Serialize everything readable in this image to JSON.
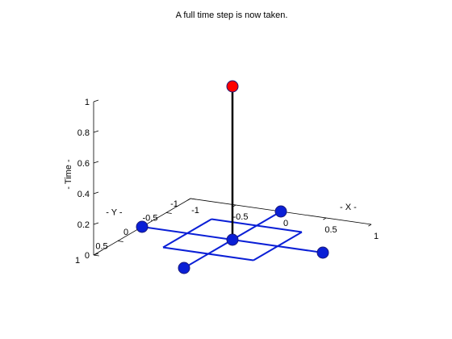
{
  "chart_data": {
    "type": "scatter3d",
    "title": "A full time step is now taken.",
    "xlabel": "- X -",
    "ylabel": "- Y -",
    "zlabel": "- Time -",
    "xlim": [
      -1,
      1
    ],
    "ylim": [
      -1,
      1
    ],
    "zlim": [
      0,
      1
    ],
    "x_ticks": [
      {
        "value": -1,
        "label": "-1"
      },
      {
        "value": -0.5,
        "label": "-0.5"
      },
      {
        "value": 0,
        "label": "0"
      },
      {
        "value": 0.5,
        "label": "0.5"
      },
      {
        "value": 1,
        "label": "1"
      }
    ],
    "y_ticks": [
      {
        "value": -1,
        "label": "-1"
      },
      {
        "value": -0.5,
        "label": "-0.5"
      },
      {
        "value": 0,
        "label": "0"
      },
      {
        "value": 0.5,
        "label": "0.5"
      },
      {
        "value": 1,
        "label": "1"
      }
    ],
    "z_ticks": [
      {
        "value": 0,
        "label": "0"
      },
      {
        "value": 0.2,
        "label": "0.2"
      },
      {
        "value": 0.4,
        "label": "0.4"
      },
      {
        "value": 0.6,
        "label": "0.6"
      },
      {
        "value": 0.8,
        "label": "0.8"
      },
      {
        "value": 1,
        "label": "1"
      }
    ],
    "grid": false,
    "colors": {
      "grid_lines": "#0a1fd6",
      "base_points": "#0a1fd6",
      "time_point": "#ff0000",
      "time_line": "#000000",
      "marker_edge": "#1a1a7a"
    },
    "line_segments": [
      {
        "from": [
          0,
          -1,
          0
        ],
        "to": [
          0,
          1,
          0
        ],
        "color": "grid"
      },
      {
        "from": [
          -1,
          0,
          0
        ],
        "to": [
          1,
          0,
          0
        ],
        "color": "grid"
      },
      {
        "from": [
          -0.5,
          -0.5,
          0
        ],
        "to": [
          0.5,
          -0.5,
          0
        ],
        "color": "grid"
      },
      {
        "from": [
          0.5,
          -0.5,
          0
        ],
        "to": [
          0.5,
          0.5,
          0
        ],
        "color": "grid"
      },
      {
        "from": [
          0.5,
          0.5,
          0
        ],
        "to": [
          -0.5,
          0.5,
          0
        ],
        "color": "grid"
      },
      {
        "from": [
          -0.5,
          0.5,
          0
        ],
        "to": [
          -0.5,
          -0.5,
          0
        ],
        "color": "grid"
      },
      {
        "from": [
          0,
          0,
          0
        ],
        "to": [
          0,
          0,
          1
        ],
        "color": "time"
      }
    ],
    "points": [
      {
        "x": 0,
        "y": 1,
        "z": 0,
        "color": "base"
      },
      {
        "x": 1,
        "y": 0,
        "z": 0,
        "color": "base"
      },
      {
        "x": -1,
        "y": 0,
        "z": 0,
        "color": "base"
      },
      {
        "x": 0,
        "y": -1,
        "z": 0,
        "color": "base"
      },
      {
        "x": 0,
        "y": 0,
        "z": 0,
        "color": "base"
      },
      {
        "x": 0,
        "y": 0,
        "z": 1,
        "color": "time"
      }
    ]
  }
}
